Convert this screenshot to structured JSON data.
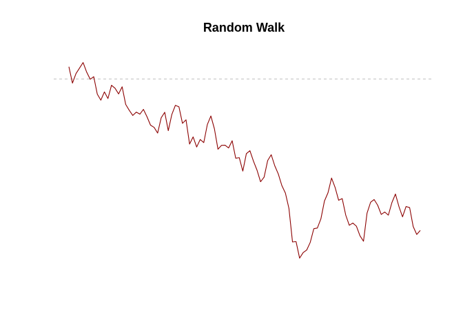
{
  "chart_data": {
    "type": "line",
    "title": "Random Walk",
    "xlabel": "",
    "ylabel": "",
    "axes_visible": false,
    "grid": false,
    "line_color": "#8B0000",
    "reference_line": {
      "y": 0,
      "style": "dashed",
      "color": "#BEBEBE"
    },
    "series": [
      {
        "values": [
          0.67,
          -0.22,
          0.3,
          0.6,
          0.9,
          0.38,
          -0.01,
          0.13,
          -0.82,
          -1.15,
          -0.7,
          -1.06,
          -0.34,
          -0.5,
          -0.81,
          -0.42,
          -1.38,
          -1.7,
          -1.98,
          -1.8,
          -1.91,
          -1.65,
          -2.05,
          -2.51,
          -2.63,
          -2.94,
          -2.11,
          -1.81,
          -2.81,
          -1.93,
          -1.43,
          -1.51,
          -2.41,
          -2.22,
          -3.54,
          -3.15,
          -3.7,
          -3.29,
          -3.46,
          -2.48,
          -2.01,
          -2.71,
          -3.82,
          -3.61,
          -3.6,
          -3.75,
          -3.36,
          -4.31,
          -4.28,
          -5.01,
          -4.06,
          -3.9,
          -4.47,
          -4.96,
          -5.59,
          -5.34,
          -4.44,
          -4.12,
          -4.72,
          -5.17,
          -5.8,
          -6.21,
          -7.05,
          -8.87,
          -8.85,
          -9.75,
          -9.45,
          -9.31,
          -8.89,
          -8.15,
          -8.11,
          -7.61,
          -6.64,
          -6.19,
          -5.39,
          -5.9,
          -6.6,
          -6.51,
          -7.41,
          -7.96,
          -7.84,
          -8.01,
          -8.53,
          -8.83,
          -7.3,
          -6.71,
          -6.56,
          -6.87,
          -7.37,
          -7.24,
          -7.41,
          -6.73,
          -6.26,
          -6.95,
          -7.5,
          -6.94,
          -7.0,
          -8.03,
          -8.46,
          -8.24
        ]
      }
    ]
  }
}
